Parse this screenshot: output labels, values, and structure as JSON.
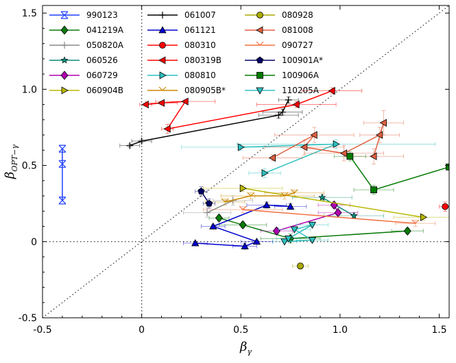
{
  "chart_data": {
    "type": "scatter",
    "xlabel": "β",
    "xlabel_sub": "γ",
    "ylabel": "β",
    "ylabel_sub": "OPT−γ",
    "xlim": [
      -0.5,
      1.55
    ],
    "ylim": [
      -0.5,
      1.55
    ],
    "xticks": [
      -0.5,
      0,
      0.5,
      1,
      1.5
    ],
    "xtick_labels": [
      "-0.5",
      "0",
      "0.5",
      "1.0",
      "1.5"
    ],
    "yticks": [
      -0.5,
      0,
      0.5,
      1,
      1.5
    ],
    "ytick_labels": [
      "-0.5",
      "0",
      "0.5",
      "1.0",
      "1.5"
    ],
    "reference_lines": [
      "y=x (dotted)",
      "x=0 (dotted)",
      "y=0 (dotted)"
    ],
    "series": [
      {
        "name": "990123",
        "color": "#1f3fff",
        "marker": "x",
        "connect": true,
        "points": [
          {
            "x": -0.4,
            "y": 0.61,
            "xerr": 0,
            "yerr": 0
          },
          {
            "x": -0.4,
            "y": 0.51,
            "xerr": 0,
            "yerr": 0
          },
          {
            "x": -0.4,
            "y": 0.27,
            "xerr": 0,
            "yerr": 0
          }
        ]
      },
      {
        "name": "041219A",
        "color": "#0a7a0a",
        "marker": "diamond",
        "connect": true,
        "points": [
          {
            "x": 0.39,
            "y": 0.155,
            "xerr": 0.05,
            "yerr": 0.02
          },
          {
            "x": 0.51,
            "y": 0.11,
            "xerr": 0.12,
            "yerr": 0.02
          },
          {
            "x": 0.75,
            "y": 0.02,
            "xerr": 0.15,
            "yerr": 0.03
          },
          {
            "x": 1.34,
            "y": 0.07,
            "xerr": 0.08,
            "yerr": 0.02
          }
        ]
      },
      {
        "name": "050820A",
        "color": "#888888",
        "marker": "plus",
        "connect": true,
        "points": [
          {
            "x": 0.33,
            "y": 0.19,
            "xerr": 0.12,
            "yerr": 0.03
          },
          {
            "x": 0.46,
            "y": 0.27,
            "xerr": 0.1,
            "yerr": 0.03
          }
        ]
      },
      {
        "name": "060526",
        "color": "#0a8a7a",
        "marker": "star",
        "connect": true,
        "points": [
          {
            "x": 0.91,
            "y": 0.29,
            "xerr": 0.15,
            "yerr": 0.02
          },
          {
            "x": 1.07,
            "y": 0.17,
            "xerr": 0.15,
            "yerr": 0.02
          }
        ]
      },
      {
        "name": "060729",
        "color": "#b000b0",
        "marker": "diamond",
        "connect": true,
        "points": [
          {
            "x": 0.68,
            "y": 0.07,
            "xerr": 0.08,
            "yerr": 0.02
          },
          {
            "x": 0.99,
            "y": 0.19,
            "xerr": 0.1,
            "yerr": 0.03
          },
          {
            "x": 0.97,
            "y": 0.24,
            "xerr": 0.08,
            "yerr": 0.02
          }
        ]
      },
      {
        "name": "060904B",
        "color": "#b8b800",
        "marker": "triangle-right",
        "connect": true,
        "points": [
          {
            "x": 0.51,
            "y": 0.35,
            "xerr": 0.2,
            "yerr": 0.02
          },
          {
            "x": 1.42,
            "y": 0.16,
            "xerr": 0.15,
            "yerr": 0.02
          }
        ]
      },
      {
        "name": "061007",
        "color": "#000000",
        "marker": "plus",
        "connect": true,
        "points": [
          {
            "x": -0.06,
            "y": 0.63,
            "xerr": 0.05,
            "yerr": 0.01
          },
          {
            "x": 0.0,
            "y": 0.66,
            "xerr": 0.05,
            "yerr": 0.01
          },
          {
            "x": 0.69,
            "y": 0.83,
            "xerr": 0.1,
            "yerr": 0.02
          },
          {
            "x": 0.71,
            "y": 0.85,
            "xerr": 0.1,
            "yerr": 0.02
          },
          {
            "x": 0.74,
            "y": 0.93,
            "xerr": 0.05,
            "yerr": 0.02
          }
        ]
      },
      {
        "name": "061121",
        "color": "#0000cc",
        "marker": "triangle-up",
        "connect": true,
        "points": [
          {
            "x": 0.27,
            "y": -0.01,
            "xerr": 0.06,
            "yerr": 0.01
          },
          {
            "x": 0.52,
            "y": -0.03,
            "xerr": 0.06,
            "yerr": 0.02
          },
          {
            "x": 0.58,
            "y": 0.0,
            "xerr": 0.08,
            "yerr": 0.01
          },
          {
            "x": 0.36,
            "y": 0.1,
            "xerr": 0.06,
            "yerr": 0.01
          },
          {
            "x": 0.63,
            "y": 0.24,
            "xerr": 0.1,
            "yerr": 0.02
          },
          {
            "x": 0.75,
            "y": 0.23,
            "xerr": 0.08,
            "yerr": 0.02
          }
        ]
      },
      {
        "name": "080310",
        "color": "#ff0000",
        "marker": "circle",
        "connect": false,
        "points": [
          {
            "x": 1.53,
            "y": 0.23,
            "xerr": 0.03,
            "yerr": 0.03
          }
        ]
      },
      {
        "name": "080319B",
        "color": "#ff0000",
        "marker": "triangle-left",
        "connect": true,
        "points": [
          {
            "x": 0.02,
            "y": 0.9,
            "xerr": 0.03,
            "yerr": 0.01
          },
          {
            "x": 0.1,
            "y": 0.91,
            "xerr": 0.08,
            "yerr": 0.01
          },
          {
            "x": 0.22,
            "y": 0.92,
            "xerr": 0.15,
            "yerr": 0.01
          },
          {
            "x": 0.13,
            "y": 0.74,
            "xerr": 0.03,
            "yerr": 0.03
          },
          {
            "x": 0.78,
            "y": 0.9,
            "xerr": 0.2,
            "yerr": 0.02
          },
          {
            "x": 0.96,
            "y": 0.99,
            "xerr": 0.15,
            "yerr": 0.02
          }
        ]
      },
      {
        "name": "080810",
        "color": "#2cc0c0",
        "marker": "triangle-right",
        "connect": true,
        "points": [
          {
            "x": 0.5,
            "y": 0.62,
            "xerr": 0.3,
            "yerr": 0.02
          },
          {
            "x": 0.98,
            "y": 0.64,
            "xerr": 0.5,
            "yerr": 0.03
          },
          {
            "x": 0.62,
            "y": 0.45,
            "xerr": 0.08,
            "yerr": 0.03
          }
        ]
      },
      {
        "name": "080905B*",
        "color": "#cc8800",
        "marker": "v-arrow",
        "connect": true,
        "points": [
          {
            "x": 0.42,
            "y": 0.26,
            "xerr": 0.1,
            "yerr": 0.02
          },
          {
            "x": 0.55,
            "y": 0.3,
            "xerr": 0.15,
            "yerr": 0.02
          },
          {
            "x": 0.72,
            "y": 0.3,
            "xerr": 0.15,
            "yerr": 0.02
          },
          {
            "x": 0.77,
            "y": 0.32,
            "xerr": 0.15,
            "yerr": 0.02
          }
        ]
      },
      {
        "name": "080928",
        "color": "#aaaa00",
        "marker": "circle",
        "connect": false,
        "points": [
          {
            "x": 0.8,
            "y": -0.16,
            "xerr": 0.04,
            "yerr": 0.02
          }
        ]
      },
      {
        "name": "081008",
        "color": "#e06040",
        "marker": "triangle-left",
        "connect": true,
        "points": [
          {
            "x": 0.66,
            "y": 0.55,
            "xerr": 0.15,
            "yerr": 0.02
          },
          {
            "x": 0.87,
            "y": 0.7,
            "xerr": 0.2,
            "yerr": 0.05
          },
          {
            "x": 0.82,
            "y": 0.62,
            "xerr": 0.2,
            "yerr": 0.05
          },
          {
            "x": 1.02,
            "y": 0.58,
            "xerr": 0.2,
            "yerr": 0.05
          },
          {
            "x": 1.2,
            "y": 0.7,
            "xerr": 0.1,
            "yerr": 0.05
          },
          {
            "x": 1.22,
            "y": 0.78,
            "xerr": 0.1,
            "yerr": 0.08
          },
          {
            "x": 1.17,
            "y": 0.56,
            "xerr": 0.15,
            "yerr": 0.05
          }
        ]
      },
      {
        "name": "090727",
        "color": "#f07040",
        "marker": "v-arrow",
        "connect": true,
        "points": [
          {
            "x": 0.51,
            "y": 0.21,
            "xerr": 0.2,
            "yerr": 0.02
          },
          {
            "x": 1.38,
            "y": 0.12,
            "xerr": 0.1,
            "yerr": 0.02
          }
        ]
      },
      {
        "name": "100901A*",
        "color": "#000066",
        "marker": "pentagon",
        "connect": true,
        "points": [
          {
            "x": 0.3,
            "y": 0.33,
            "xerr": 0.03,
            "yerr": 0.03
          },
          {
            "x": 0.34,
            "y": 0.25,
            "xerr": 0.03,
            "yerr": 0.03
          }
        ]
      },
      {
        "name": "100906A",
        "color": "#007a00",
        "marker": "square",
        "connect": true,
        "points": [
          {
            "x": 1.05,
            "y": 0.56,
            "xerr": 0.08,
            "yerr": 0.03
          },
          {
            "x": 1.17,
            "y": 0.34,
            "xerr": 0.1,
            "yerr": 0.03
          },
          {
            "x": 1.55,
            "y": 0.49,
            "xerr": 0,
            "yerr": 0
          }
        ]
      },
      {
        "name": "110205A",
        "color": "#30c0c0",
        "marker": "triangle-down",
        "connect": true,
        "points": [
          {
            "x": 0.72,
            "y": 0.0,
            "xerr": 0.06,
            "yerr": 0.01
          },
          {
            "x": 0.86,
            "y": 0.01,
            "xerr": 0.08,
            "yerr": 0.01
          },
          {
            "x": 0.77,
            "y": 0.08,
            "xerr": 0.08,
            "yerr": 0.01
          },
          {
            "x": 0.86,
            "y": 0.11,
            "xerr": 0.08,
            "yerr": 0.01
          },
          {
            "x": 0.74,
            "y": 0.02,
            "xerr": 0.06,
            "yerr": 0.01
          }
        ]
      }
    ]
  }
}
